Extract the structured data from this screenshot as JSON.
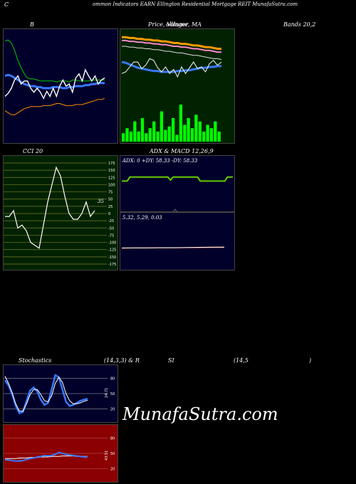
{
  "header": {
    "left": "C",
    "title": "ommon  Indicators EARN  Ellington  Residential Mortgage   REIT MunafaSutra.com"
  },
  "labels": {
    "bollinger": "B",
    "price": "Price,  Volume,  MA",
    "price_overlap": "ollinger",
    "bands": "Bands 20,2",
    "cci": "CCI 20",
    "adx_macd": "ADX  & MACD 12,26,9",
    "stoch_1": "Stochastics",
    "stoch_2": "(14,3,3) & R",
    "stoch_3": "SI",
    "stoch_4": "(14,5",
    "stoch_5": ")"
  },
  "watermark": "MunafaSutra.com",
  "colors": {
    "bg": "#000000",
    "bollinger_bg": "#00002a",
    "price_bg": "#002200",
    "cci_bg": "#002200",
    "adx_bg": "#00002a",
    "stoch_bg": "#00002a",
    "rsi_bg": "#8b0000",
    "volume": "#00ff00",
    "blue": "#3a78ff",
    "orange": "#ff8c00",
    "green_line": "#00cc00",
    "pink": "#ff88cc",
    "gold": "#ff9900"
  },
  "chart_data": [
    {
      "type": "line",
      "name": "bollinger",
      "ylim": [
        0,
        100
      ],
      "series": [
        {
          "name": "upper",
          "values": [
            94,
            95,
            92,
            85,
            75,
            68,
            62,
            58,
            57,
            57,
            56,
            55,
            55,
            55,
            55,
            55,
            54,
            55,
            55,
            55,
            54,
            56,
            56,
            55,
            55,
            55,
            55,
            56,
            56,
            56,
            56,
            56
          ]
        },
        {
          "name": "middle",
          "values": [
            60,
            61,
            60,
            58,
            56,
            54,
            52,
            51,
            50,
            50,
            49,
            49,
            48,
            48,
            48,
            49,
            49,
            49,
            48,
            48,
            49,
            49,
            50,
            50,
            50,
            51,
            51,
            52,
            52,
            53,
            53,
            53
          ]
        },
        {
          "name": "lower",
          "values": [
            26,
            24,
            22,
            22,
            24,
            26,
            28,
            29,
            30,
            30,
            30,
            30,
            31,
            31,
            31,
            32,
            33,
            33,
            32,
            31,
            31,
            31,
            32,
            32,
            32,
            33,
            34,
            35,
            36,
            37,
            37,
            38
          ]
        },
        {
          "name": "price",
          "values": [
            40,
            43,
            48,
            56,
            60,
            52,
            55,
            55,
            48,
            44,
            48,
            44,
            38,
            45,
            40,
            48,
            40,
            50,
            56,
            50,
            52,
            44,
            58,
            62,
            55,
            66,
            60,
            55,
            60,
            52,
            56,
            58
          ]
        }
      ]
    },
    {
      "type": "line",
      "name": "price_volume_ma",
      "ylim": [
        0,
        100
      ],
      "series": [
        {
          "name": "ma_gold",
          "values": [
            92,
            92,
            91,
            91,
            90,
            90,
            89,
            89,
            88,
            88,
            87,
            87,
            86,
            85,
            85,
            84,
            84,
            83,
            82,
            82,
            81,
            80,
            80,
            79,
            78,
            78
          ]
        },
        {
          "name": "ma_pink",
          "values": [
            88,
            88,
            87,
            87,
            86,
            86,
            85,
            85,
            84,
            84,
            83,
            83,
            82,
            81,
            81,
            80,
            80,
            79,
            78,
            78,
            77,
            76,
            76,
            75,
            74,
            74
          ]
        },
        {
          "name": "ma_white",
          "values": [
            81,
            81,
            80,
            80,
            79,
            79,
            78,
            78,
            77,
            77,
            76,
            75,
            75,
            74,
            73,
            73,
            72,
            71,
            70,
            70,
            69,
            68,
            67,
            66,
            66,
            65
          ]
        },
        {
          "name": "ma_blue",
          "values": [
            62,
            61,
            59,
            57,
            55,
            54,
            53,
            52,
            51,
            51,
            50,
            50,
            50,
            50,
            51,
            51,
            52,
            52,
            53,
            54,
            55,
            55,
            56,
            56,
            57,
            57
          ]
        },
        {
          "name": "price",
          "values": [
            48,
            50,
            56,
            62,
            62,
            54,
            58,
            66,
            64,
            55,
            50,
            56,
            48,
            53,
            44,
            56,
            48,
            55,
            62,
            54,
            56,
            50,
            60,
            64,
            58,
            62
          ]
        },
        {
          "name": "volume",
          "values": [
            5,
            8,
            6,
            12,
            6,
            14,
            5,
            8,
            12,
            6,
            18,
            7,
            9,
            14,
            4,
            22,
            10,
            14,
            8,
            16,
            12,
            6,
            10,
            8,
            12,
            6
          ]
        }
      ]
    },
    {
      "type": "line",
      "name": "cci",
      "ylim": [
        -175,
        175
      ],
      "y_ticks": [
        175,
        150,
        125,
        100,
        75,
        50,
        25,
        0,
        -25,
        -50,
        -75,
        -100,
        -125,
        -150,
        -175
      ],
      "current": "35",
      "values": [
        -10,
        -10,
        10,
        -50,
        -40,
        -60,
        -100,
        -110,
        -120,
        -40,
        40,
        100,
        160,
        130,
        60,
        0,
        -20,
        -20,
        0,
        40,
        -10,
        10
      ]
    },
    {
      "type": "line",
      "name": "adx",
      "readout": "ADX: 0   +DY: 58.33 -DY: 58.33",
      "ylim": [
        0,
        100
      ],
      "values": [
        58,
        58,
        58,
        66,
        66,
        66,
        66,
        66,
        66,
        66,
        66,
        66,
        66,
        66,
        66,
        66,
        66,
        66,
        60,
        66,
        66,
        66,
        66,
        66,
        66,
        66,
        66,
        66,
        66,
        58,
        58,
        58,
        58,
        58,
        58,
        58,
        58,
        58,
        58,
        66,
        66,
        66
      ]
    },
    {
      "type": "line",
      "name": "macd",
      "readout": "5.32,  5.29,  0.03",
      "series": [
        {
          "name": "macd",
          "values": [
            5.26,
            5.27,
            5.27,
            5.28,
            5.28,
            5.29,
            5.3,
            5.31,
            5.32
          ]
        },
        {
          "name": "signal",
          "values": [
            5.25,
            5.26,
            5.26,
            5.27,
            5.27,
            5.28,
            5.28,
            5.29,
            5.29
          ]
        }
      ]
    },
    {
      "type": "line",
      "name": "stochastics",
      "ylim": [
        0,
        100
      ],
      "y_ticks": [
        80,
        50,
        20
      ],
      "current": "24.71",
      "series": [
        {
          "name": "k",
          "values": [
            76,
            66,
            48,
            26,
            12,
            14,
            36,
            56,
            62,
            54,
            38,
            28,
            32,
            58,
            86,
            82,
            58,
            34,
            26,
            28,
            32,
            36,
            38,
            40
          ]
        },
        {
          "name": "d",
          "values": [
            84,
            70,
            52,
            30,
            16,
            16,
            30,
            48,
            58,
            58,
            48,
            36,
            34,
            46,
            70,
            82,
            72,
            50,
            36,
            30,
            30,
            32,
            35,
            37
          ]
        }
      ]
    },
    {
      "type": "line",
      "name": "rsi",
      "ylim": [
        0,
        100
      ],
      "y_ticks": [
        80,
        50,
        20
      ],
      "current": "43.51",
      "series": [
        {
          "name": "rsi",
          "values": [
            38,
            37,
            36,
            35,
            35,
            36,
            38,
            40,
            41,
            43,
            44,
            46,
            45,
            46,
            48,
            52,
            50,
            48,
            47,
            46,
            45,
            44,
            43,
            43
          ]
        },
        {
          "name": "ref",
          "values": [
            40,
            40,
            40,
            40,
            41,
            41,
            41,
            42,
            42,
            42,
            43,
            43,
            43,
            44,
            44,
            44,
            45,
            45,
            45,
            45,
            44,
            44,
            44,
            44
          ]
        }
      ]
    }
  ]
}
